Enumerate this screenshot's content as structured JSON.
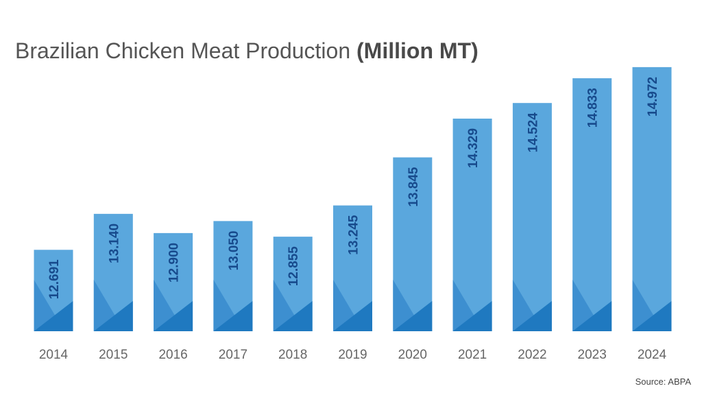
{
  "title_main": "Brazilian Chicken Meat Production",
  "title_units": "(Million MT)",
  "source": "Source: ABPA",
  "colors": {
    "bar_main": "#5aa7dd",
    "bar_mid": "#3d8fd0",
    "bar_dark": "#1f79c0",
    "value_label": "#174a8c",
    "tick_label": "#666666"
  },
  "chart_data": {
    "type": "bar",
    "title": "Brazilian Chicken Meat Production (Million MT)",
    "categories": [
      "2014",
      "2015",
      "2016",
      "2017",
      "2018",
      "2019",
      "2020",
      "2021",
      "2022",
      "2023",
      "2024"
    ],
    "values": [
      12.691,
      13.14,
      12.9,
      13.05,
      12.855,
      13.245,
      13.845,
      14.329,
      14.524,
      14.833,
      14.972
    ],
    "value_labels": [
      "12.691",
      "13.140",
      "12.900",
      "13.050",
      "12.855",
      "13.245",
      "13.845",
      "14.329",
      "14.524",
      "14.833",
      "14.972"
    ],
    "xlabel": "",
    "ylabel": "",
    "grid": false,
    "legend": "none"
  }
}
